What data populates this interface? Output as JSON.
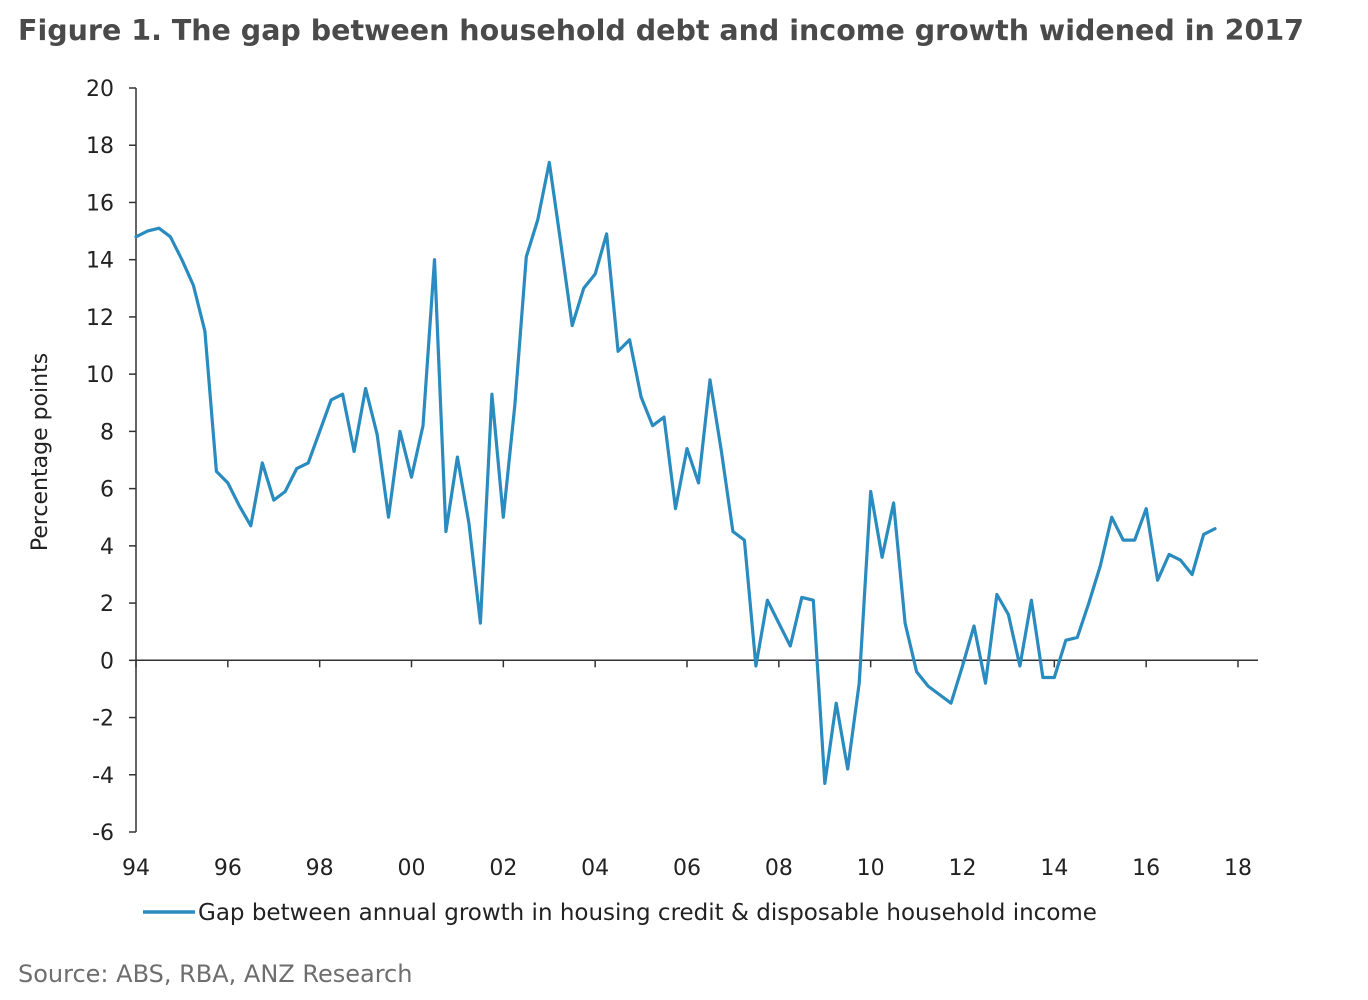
{
  "title": "Figure 1. The gap between household debt and income growth widened in 2017",
  "source": "Source: ABS, RBA, ANZ Research",
  "colors": {
    "series": "#2a8bbf",
    "axis": "#333333"
  },
  "chart_data": {
    "type": "line",
    "ylabel": "Percentage points",
    "xlabel": "",
    "ylim": [
      -6,
      20
    ],
    "y_ticks": [
      20,
      18,
      16,
      14,
      12,
      10,
      8,
      6,
      4,
      2,
      0,
      -2,
      -4,
      -6
    ],
    "xlim": [
      1994,
      2018
    ],
    "x_ticks": [
      {
        "year": 1994,
        "label": "94"
      },
      {
        "year": 1996,
        "label": "96"
      },
      {
        "year": 1998,
        "label": "98"
      },
      {
        "year": 2000,
        "label": "00"
      },
      {
        "year": 2002,
        "label": "02"
      },
      {
        "year": 2004,
        "label": "04"
      },
      {
        "year": 2006,
        "label": "06"
      },
      {
        "year": 2008,
        "label": "08"
      },
      {
        "year": 2010,
        "label": "10"
      },
      {
        "year": 2012,
        "label": "12"
      },
      {
        "year": 2014,
        "label": "14"
      },
      {
        "year": 2016,
        "label": "16"
      },
      {
        "year": 2018,
        "label": "18"
      }
    ],
    "grid": false,
    "legend_position": "bottom",
    "series": [
      {
        "name": "Gap between annual growth in housing credit & disposable household income",
        "x": [
          1994.0,
          1994.25,
          1994.5,
          1994.75,
          1995.0,
          1995.25,
          1995.5,
          1995.75,
          1996.0,
          1996.25,
          1996.5,
          1996.75,
          1997.0,
          1997.25,
          1997.5,
          1997.75,
          1998.0,
          1998.25,
          1998.5,
          1998.75,
          1999.0,
          1999.25,
          1999.5,
          1999.75,
          2000.0,
          2000.25,
          2000.5,
          2000.75,
          2001.0,
          2001.25,
          2001.5,
          2001.75,
          2002.0,
          2002.25,
          2002.5,
          2002.75,
          2003.0,
          2003.25,
          2003.5,
          2003.75,
          2004.0,
          2004.25,
          2004.5,
          2004.75,
          2005.0,
          2005.25,
          2005.5,
          2005.75,
          2006.0,
          2006.25,
          2006.5,
          2006.75,
          2007.0,
          2007.25,
          2007.5,
          2007.75,
          2008.0,
          2008.25,
          2008.5,
          2008.75,
          2009.0,
          2009.25,
          2009.5,
          2009.75,
          2010.0,
          2010.25,
          2010.5,
          2010.75,
          2011.0,
          2011.25,
          2011.5,
          2011.75,
          2012.0,
          2012.25,
          2012.5,
          2012.75,
          2013.0,
          2013.25,
          2013.5,
          2013.75,
          2014.0,
          2014.25,
          2014.5,
          2014.75,
          2015.0,
          2015.25,
          2015.5,
          2015.75,
          2016.0,
          2016.25,
          2016.5,
          2016.75,
          2017.0,
          2017.25,
          2017.5
        ],
        "values": [
          14.8,
          15.0,
          15.1,
          14.8,
          14.0,
          13.1,
          11.5,
          6.6,
          6.2,
          5.4,
          4.7,
          6.9,
          5.6,
          5.9,
          6.7,
          6.9,
          8.0,
          9.1,
          9.3,
          7.3,
          9.5,
          7.9,
          5.0,
          8.0,
          6.4,
          8.2,
          14.0,
          4.5,
          7.1,
          4.8,
          1.3,
          9.3,
          5.0,
          8.9,
          14.1,
          15.4,
          17.4,
          14.6,
          11.7,
          13.0,
          13.5,
          14.9,
          10.8,
          11.2,
          9.2,
          8.2,
          8.5,
          5.3,
          7.4,
          6.2,
          9.8,
          7.3,
          4.5,
          4.2,
          -0.2,
          2.1,
          1.3,
          0.5,
          2.2,
          2.1,
          -4.3,
          -1.5,
          -3.8,
          -0.8,
          5.9,
          3.6,
          5.5,
          1.3,
          -0.4,
          -0.9,
          -1.2,
          -1.5,
          -0.2,
          1.2,
          -0.8,
          2.3,
          1.6,
          -0.2,
          2.1,
          -0.6,
          -0.6,
          0.7,
          0.8,
          2.0,
          3.3,
          5.0,
          4.2,
          4.2,
          5.3,
          2.8,
          3.7,
          3.5,
          3.0,
          4.4,
          4.6
        ]
      }
    ]
  }
}
